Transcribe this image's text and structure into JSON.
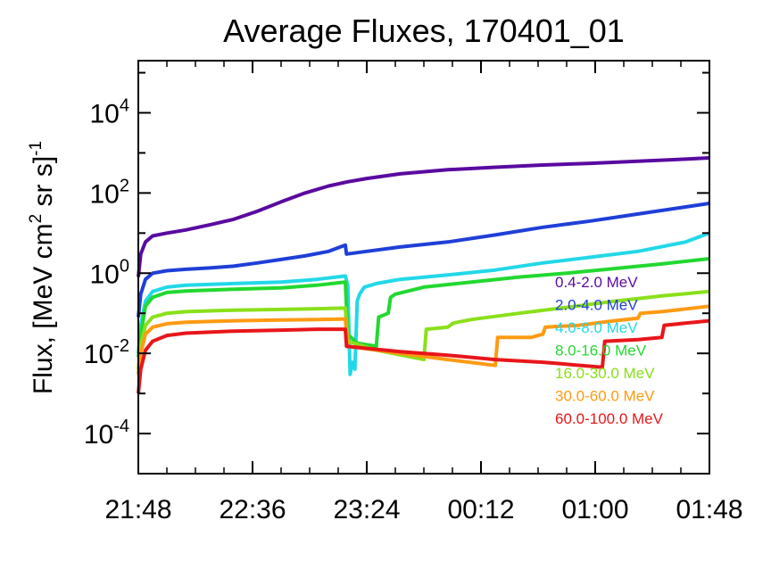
{
  "chart_data": {
    "type": "line",
    "title": "Average Fluxes, 170401_01",
    "ylabel": "Flux, [MeV cm2 sr s]-1",
    "ylabel_parts": {
      "main": "Flux, [MeV cm",
      "sup1": "2",
      "mid": " sr s]",
      "sup2": "-1"
    },
    "xlabel": "",
    "y_scale": "log",
    "ylim": [
      1e-05,
      200000.0
    ],
    "xlim_minutes": [
      0,
      240
    ],
    "x_ticks": [
      {
        "m": 0,
        "label": "21:48"
      },
      {
        "m": 48,
        "label": "22:36"
      },
      {
        "m": 96,
        "label": "23:24"
      },
      {
        "m": 144,
        "label": "00:12"
      },
      {
        "m": 192,
        "label": "01:00"
      },
      {
        "m": 240,
        "label": "01:48"
      }
    ],
    "y_ticks": [
      {
        "v": 0.0001,
        "base": "10",
        "exp": "-4"
      },
      {
        "v": 0.01,
        "base": "10",
        "exp": "-2"
      },
      {
        "v": 1,
        "base": "10",
        "exp": "0"
      },
      {
        "v": 100,
        "base": "10",
        "exp": "2"
      },
      {
        "v": 10000,
        "base": "10",
        "exp": "4"
      }
    ],
    "grid": false,
    "legend_position": "right",
    "series": [
      {
        "name": "0.4-2.0 MeV",
        "color": "#5a0aa0",
        "x": [
          0,
          1,
          3,
          6,
          12,
          20,
          30,
          40,
          50,
          60,
          70,
          80,
          88,
          96,
          110,
          130,
          150,
          170,
          190,
          210,
          230,
          240
        ],
        "y": [
          0.8,
          3,
          6,
          8.5,
          10,
          12,
          16,
          22,
          35,
          60,
          100,
          150,
          190,
          230,
          300,
          380,
          440,
          500,
          550,
          620,
          700,
          750
        ]
      },
      {
        "name": "2.0-4.0 MeV",
        "color": "#1f3fd8",
        "x": [
          0,
          1,
          3,
          6,
          12,
          20,
          30,
          40,
          50,
          60,
          70,
          80,
          87,
          87.5,
          96,
          110,
          130,
          150,
          170,
          190,
          210,
          230,
          240
        ],
        "y": [
          0.08,
          0.3,
          0.7,
          1,
          1.15,
          1.25,
          1.35,
          1.5,
          1.8,
          2.2,
          2.7,
          3.5,
          5,
          3,
          3.5,
          4.5,
          6,
          9,
          14,
          20,
          30,
          45,
          55
        ]
      },
      {
        "name": "4.0-8.0 MeV",
        "color": "#22d8e8",
        "x": [
          0,
          1,
          3,
          6,
          12,
          20,
          40,
          60,
          75,
          87,
          88,
          89,
          90,
          91,
          92,
          93,
          95,
          100,
          110,
          130,
          150,
          170,
          190,
          210,
          230,
          240
        ],
        "y": [
          0.01,
          0.05,
          0.2,
          0.35,
          0.45,
          0.5,
          0.55,
          0.6,
          0.7,
          0.85,
          0.5,
          0.003,
          0.006,
          0.004,
          0.2,
          0.3,
          0.45,
          0.55,
          0.7,
          0.9,
          1.2,
          1.8,
          2.5,
          3.5,
          6,
          10
        ]
      },
      {
        "name": "8.0-16.0 MeV",
        "color": "#22d830",
        "x": [
          0,
          1,
          3,
          6,
          12,
          20,
          40,
          60,
          75,
          87,
          88,
          92,
          100,
          101,
          105,
          106,
          108,
          120,
          140,
          160,
          180,
          200,
          220,
          240
        ],
        "y": [
          0.008,
          0.03,
          0.15,
          0.25,
          0.33,
          0.36,
          0.4,
          0.43,
          0.5,
          0.6,
          0.03,
          0.018,
          0.015,
          0.08,
          0.1,
          0.25,
          0.3,
          0.45,
          0.6,
          0.8,
          1.0,
          1.3,
          1.7,
          2.3
        ]
      },
      {
        "name": "16.0-30.0 MeV",
        "color": "#8ae01a",
        "x": [
          0,
          1,
          3,
          6,
          12,
          20,
          40,
          60,
          75,
          87,
          88,
          100,
          120,
          121,
          125,
          130,
          132,
          133,
          140,
          160,
          180,
          200,
          220,
          240
        ],
        "y": [
          0.004,
          0.015,
          0.05,
          0.08,
          0.1,
          0.11,
          0.12,
          0.125,
          0.13,
          0.135,
          0.02,
          0.012,
          0.007,
          0.04,
          0.042,
          0.045,
          0.055,
          0.058,
          0.07,
          0.1,
          0.14,
          0.2,
          0.27,
          0.35
        ]
      },
      {
        "name": "30.0-60.0 MeV",
        "color": "#ff9a12",
        "x": [
          0,
          1,
          3,
          6,
          12,
          20,
          40,
          60,
          75,
          87,
          88,
          110,
          130,
          150,
          151,
          165,
          170,
          171,
          185,
          200,
          210,
          211,
          220,
          240
        ],
        "y": [
          0.003,
          0.01,
          0.03,
          0.045,
          0.055,
          0.06,
          0.065,
          0.068,
          0.07,
          0.072,
          0.015,
          0.01,
          0.007,
          0.005,
          0.025,
          0.025,
          0.03,
          0.045,
          0.05,
          0.065,
          0.075,
          0.1,
          0.11,
          0.15
        ]
      },
      {
        "name": "60.0-100.0 MeV",
        "color": "#e8161a",
        "x": [
          0,
          1,
          3,
          6,
          12,
          20,
          40,
          60,
          75,
          87,
          87.5,
          110,
          130,
          150,
          170,
          195,
          196,
          210,
          220,
          221,
          240
        ],
        "y": [
          0.001,
          0.004,
          0.012,
          0.02,
          0.028,
          0.032,
          0.036,
          0.038,
          0.04,
          0.04,
          0.015,
          0.011,
          0.009,
          0.007,
          0.006,
          0.0045,
          0.02,
          0.022,
          0.025,
          0.05,
          0.065
        ]
      }
    ]
  }
}
